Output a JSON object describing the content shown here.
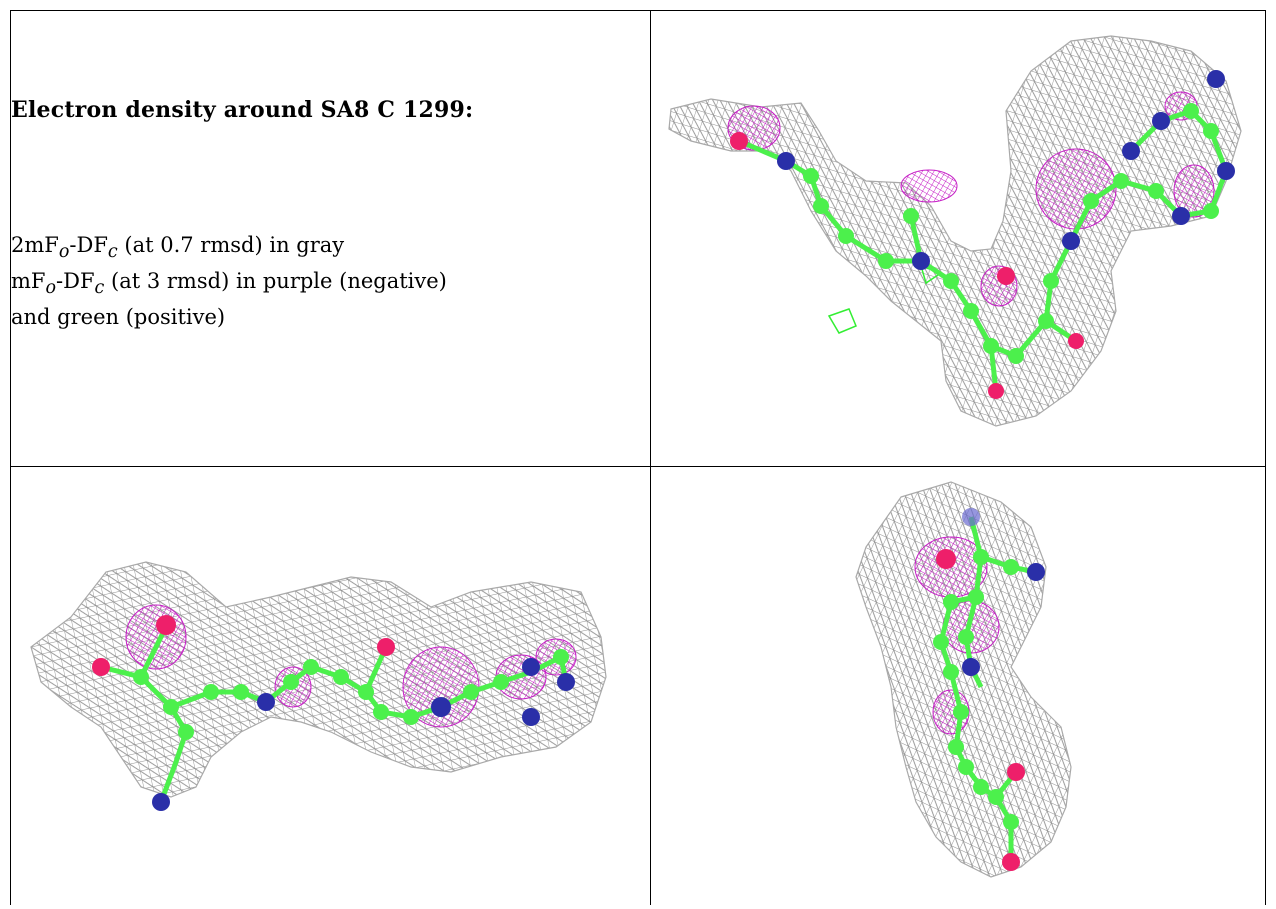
{
  "caption": {
    "title": "Electron density around SA8 C 1299:",
    "line1": {
      "prefix": "2mF",
      "sub_o": "o",
      "mid": "-DF",
      "sub_c": "c",
      "suffix": " (at 0.7 rmsd) in gray"
    },
    "line2": {
      "prefix": "mF",
      "sub_o": "o",
      "mid": "-DF",
      "sub_c": "c",
      "suffix": " (at 3 rmsd) in purple (negative)"
    },
    "line3": "and green (positive)"
  },
  "colors": {
    "mesh_2fofc": "#9a9a9a",
    "mesh_negative": "#cc22cc",
    "mesh_positive": "#33ee33",
    "carbon": "#4cf04c",
    "nitrogen": "#2a2fa8",
    "oxygen": "#ee1f6a"
  },
  "panels": [
    {
      "view": "top-right",
      "icon": "electron-density-view-1"
    },
    {
      "view": "bottom-left",
      "icon": "electron-density-view-2"
    },
    {
      "view": "bottom-right",
      "icon": "electron-density-view-3"
    }
  ]
}
